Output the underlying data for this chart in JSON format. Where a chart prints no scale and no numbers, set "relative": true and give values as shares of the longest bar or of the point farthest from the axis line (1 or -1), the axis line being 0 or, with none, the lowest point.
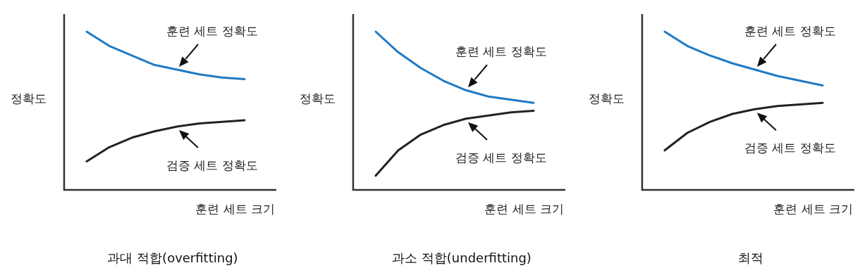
{
  "chart_data": [
    {
      "type": "line",
      "title": "과대 적합(overfitting)",
      "xlabel": "훈련 세트 크기",
      "ylabel": "정확도",
      "relative": true,
      "categories": [
        null,
        null,
        null,
        null,
        null,
        null,
        null,
        null
      ],
      "series": [
        {
          "name": "훈련 세트 정확도",
          "color": "#1f7ac4",
          "values": [
            1,
            0.91,
            0.85,
            0.79,
            0.76,
            0.73,
            0.71,
            0.7
          ]
        },
        {
          "name": "검증 세트 정확도",
          "color": "#222222",
          "values": [
            0.18,
            0.27,
            0.33,
            0.37,
            0.4,
            0.42,
            0.43,
            0.44
          ]
        }
      ]
    },
    {
      "type": "line",
      "title": "과소 적합(underfitting)",
      "xlabel": "훈련 세트 크기",
      "ylabel": "정확도",
      "relative": true,
      "categories": [
        null,
        null,
        null,
        null,
        null,
        null,
        null,
        null
      ],
      "series": [
        {
          "name": "훈련 세트 정확도",
          "color": "#1f7ac4",
          "values": [
            1,
            0.87,
            0.77,
            0.69,
            0.63,
            0.59,
            0.57,
            0.55
          ]
        },
        {
          "name": "검증 세트 정확도",
          "color": "#222222",
          "values": [
            0.09,
            0.25,
            0.35,
            0.41,
            0.45,
            0.47,
            0.49,
            0.5
          ]
        }
      ]
    },
    {
      "type": "line",
      "title": "최적",
      "xlabel": "훈련 세트 크기",
      "ylabel": "정확도",
      "relative": true,
      "categories": [
        null,
        null,
        null,
        null,
        null,
        null,
        null,
        null
      ],
      "series": [
        {
          "name": "훈련 세트 정확도",
          "color": "#1f7ac4",
          "values": [
            1,
            0.91,
            0.85,
            0.8,
            0.76,
            0.72,
            0.69,
            0.66
          ]
        },
        {
          "name": "검증 세트 정확도",
          "color": "#222222",
          "values": [
            0.25,
            0.36,
            0.43,
            0.48,
            0.51,
            0.53,
            0.54,
            0.55
          ]
        }
      ]
    }
  ]
}
